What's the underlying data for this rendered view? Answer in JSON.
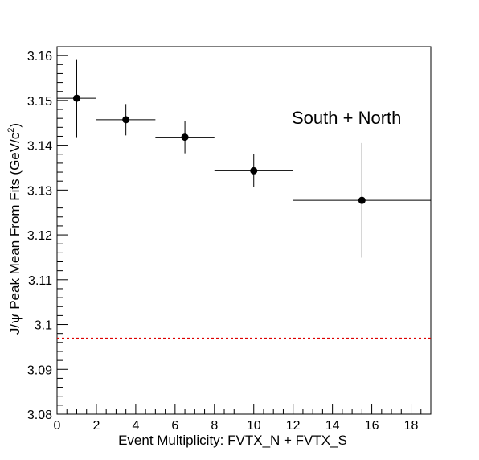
{
  "chart_data": {
    "type": "scatter",
    "xlabel": "Event Multiplicity: FVTX_N + FVTX_S",
    "ylabel_parts": [
      "J/",
      "ψ",
      " Peak Mean From Fits (GeV/c",
      "2",
      ")"
    ],
    "annotation": "South + North",
    "xlim": [
      0,
      19
    ],
    "ylim": [
      3.08,
      3.162
    ],
    "x_ticks": [
      0,
      2,
      4,
      6,
      8,
      10,
      12,
      14,
      16,
      18
    ],
    "y_ticks": [
      3.08,
      3.09,
      3.1,
      3.11,
      3.12,
      3.13,
      3.14,
      3.15,
      3.16
    ],
    "x_tick_labels": [
      "0",
      "2",
      "4",
      "6",
      "8",
      "10",
      "12",
      "14",
      "16",
      "18"
    ],
    "y_tick_labels": [
      "3.08",
      "3.09",
      "3.1",
      "3.11",
      "3.12",
      "3.13",
      "3.14",
      "3.15",
      "3.16"
    ],
    "points": [
      {
        "x": 1.0,
        "y": 3.1505,
        "x_lo": 0.0,
        "x_hi": 2.0,
        "y_err": 0.0087
      },
      {
        "x": 3.5,
        "y": 3.1457,
        "x_lo": 2.0,
        "x_hi": 5.0,
        "y_err": 0.0035
      },
      {
        "x": 6.5,
        "y": 3.1418,
        "x_lo": 5.0,
        "x_hi": 8.0,
        "y_err": 0.0036
      },
      {
        "x": 10.0,
        "y": 3.1343,
        "x_lo": 8.0,
        "x_hi": 12.0,
        "y_err": 0.0037
      },
      {
        "x": 15.5,
        "y": 3.1277,
        "x_lo": 12.0,
        "x_hi": 19.0,
        "y_err": 0.0128
      }
    ],
    "reference_line": {
      "y": 3.0969,
      "color": "#dd0000",
      "style": "dotted"
    },
    "colors": {
      "marker": "#000000",
      "axis": "#000000"
    }
  }
}
